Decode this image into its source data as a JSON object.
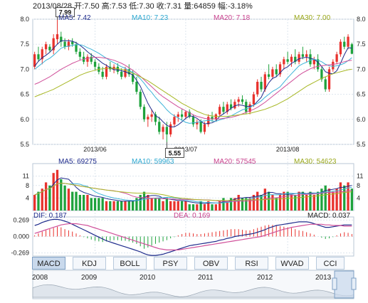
{
  "header": {
    "text": "2013/08/28 开:7.50 高:7.53 低:7.30 收:7.31 量:64859 幅:-3.18%"
  },
  "colors": {
    "up": "#e8322d",
    "down": "#1ea23c",
    "ma5": "#1f2c8c",
    "ma10": "#3fb4d8",
    "ma20": "#d0509a",
    "ma30": "#a8b826"
  },
  "price_legend": {
    "ma5": "MA5: 7.42",
    "ma10": "MA10: 7.23",
    "ma20": "MA20: 7.18",
    "ma30": "MA30: 7.00"
  },
  "vol_legend": {
    "ma5": "MA5: 69275",
    "ma10": "MA10: 59963",
    "ma20": "MA20: 57545",
    "ma30": "MA30: 54623"
  },
  "macd_legend": {
    "dif": "DIF: 0.187",
    "dea": "DEA: 0.169",
    "macd": "MACD: 0.037"
  },
  "tabs": [
    "MACD",
    "KDJ",
    "BOLL",
    "PSY",
    "OBV",
    "RSI",
    "WVAD",
    "CCI"
  ],
  "active_tab": "MACD",
  "timeline_years": [
    "2008",
    "2009",
    "2010",
    "2011",
    "2012",
    "2013"
  ],
  "chart_data": [
    {
      "type": "candlestick",
      "x_labels": [
        "2013/06",
        "2013/07",
        "2013/08"
      ],
      "ylim": [
        5.5,
        8.0
      ],
      "y_ticks": [
        "8.0",
        "7.5",
        "7.0",
        "6.5",
        "6.0",
        "5.5"
      ],
      "annotations": [
        {
          "label": "7.99",
          "index": 6
        },
        {
          "label": "5.55",
          "index": 35
        }
      ],
      "ohlc": [
        [
          7.05,
          7.35,
          7.0,
          7.3
        ],
        [
          7.3,
          7.45,
          7.15,
          7.2
        ],
        [
          7.2,
          7.45,
          7.1,
          7.4
        ],
        [
          7.4,
          7.55,
          7.3,
          7.5
        ],
        [
          7.45,
          7.5,
          7.35,
          7.38
        ],
        [
          7.38,
          7.7,
          7.3,
          7.62
        ],
        [
          7.6,
          7.99,
          7.5,
          7.7
        ],
        [
          7.65,
          7.75,
          7.45,
          7.55
        ],
        [
          7.55,
          7.62,
          7.4,
          7.45
        ],
        [
          7.45,
          7.6,
          7.38,
          7.55
        ],
        [
          7.55,
          7.62,
          7.45,
          7.5
        ],
        [
          7.5,
          7.55,
          7.3,
          7.35
        ],
        [
          7.35,
          7.42,
          7.18,
          7.25
        ],
        [
          7.25,
          7.35,
          7.1,
          7.15
        ],
        [
          7.15,
          7.3,
          7.05,
          7.25
        ],
        [
          7.25,
          7.32,
          7.1,
          7.15
        ],
        [
          7.15,
          7.2,
          6.98,
          7.05
        ],
        [
          7.05,
          7.12,
          6.9,
          6.95
        ],
        [
          6.95,
          7.05,
          6.8,
          6.85
        ],
        [
          6.85,
          7.1,
          6.8,
          7.05
        ],
        [
          7.05,
          7.15,
          6.95,
          7.0
        ],
        [
          7.0,
          7.1,
          6.92,
          7.05
        ],
        [
          7.05,
          7.12,
          6.9,
          6.95
        ],
        [
          6.95,
          7.02,
          6.8,
          6.85
        ],
        [
          6.85,
          7.05,
          6.82,
          7.0
        ],
        [
          7.0,
          7.1,
          6.85,
          6.9
        ],
        [
          6.9,
          6.98,
          6.7,
          6.75
        ],
        [
          6.75,
          6.85,
          6.5,
          6.55
        ],
        [
          6.55,
          6.6,
          6.2,
          6.25
        ],
        [
          6.25,
          6.3,
          5.95,
          6.0
        ],
        [
          6.0,
          6.1,
          5.85,
          6.05
        ],
        [
          6.05,
          6.2,
          5.95,
          6.1
        ],
        [
          6.1,
          6.15,
          5.88,
          5.95
        ],
        [
          5.95,
          6.05,
          5.7,
          5.75
        ],
        [
          5.75,
          5.9,
          5.6,
          5.85
        ],
        [
          5.85,
          5.95,
          5.55,
          5.7
        ],
        [
          5.7,
          5.95,
          5.65,
          5.9
        ],
        [
          5.9,
          6.1,
          5.85,
          6.05
        ],
        [
          6.05,
          6.15,
          5.95,
          6.1
        ],
        [
          6.1,
          6.2,
          5.98,
          6.05
        ],
        [
          6.05,
          6.18,
          6.0,
          6.15
        ],
        [
          6.15,
          6.2,
          6.02,
          6.05
        ],
        [
          6.05,
          6.1,
          5.85,
          5.9
        ],
        [
          5.9,
          6.0,
          5.8,
          5.95
        ],
        [
          5.95,
          6.0,
          5.72,
          5.75
        ],
        [
          5.75,
          5.95,
          5.7,
          5.9
        ],
        [
          5.9,
          6.1,
          5.85,
          6.05
        ],
        [
          6.05,
          6.15,
          5.95,
          6.0
        ],
        [
          6.0,
          6.12,
          5.95,
          6.1
        ],
        [
          6.1,
          6.3,
          6.05,
          6.25
        ],
        [
          6.25,
          6.35,
          6.1,
          6.15
        ],
        [
          6.15,
          6.35,
          6.1,
          6.3
        ],
        [
          6.3,
          6.4,
          6.18,
          6.22
        ],
        [
          6.22,
          6.4,
          6.2,
          6.35
        ],
        [
          6.35,
          6.45,
          6.25,
          6.4
        ],
        [
          6.4,
          6.48,
          6.3,
          6.35
        ],
        [
          6.35,
          6.4,
          6.1,
          6.15
        ],
        [
          6.15,
          6.35,
          6.1,
          6.3
        ],
        [
          6.3,
          6.55,
          6.25,
          6.5
        ],
        [
          6.5,
          6.8,
          6.45,
          6.75
        ],
        [
          6.75,
          6.85,
          6.55,
          6.6
        ],
        [
          6.6,
          6.95,
          6.55,
          6.9
        ],
        [
          6.9,
          7.1,
          6.8,
          6.85
        ],
        [
          6.85,
          7.05,
          6.8,
          7.0
        ],
        [
          7.0,
          7.1,
          6.85,
          6.9
        ],
        [
          6.9,
          7.15,
          6.85,
          7.1
        ],
        [
          7.1,
          7.25,
          7.0,
          7.2
        ],
        [
          7.2,
          7.35,
          7.1,
          7.15
        ],
        [
          7.15,
          7.3,
          7.05,
          7.25
        ],
        [
          7.25,
          7.4,
          7.1,
          7.15
        ],
        [
          7.15,
          7.35,
          7.1,
          7.3
        ],
        [
          7.3,
          7.45,
          7.2,
          7.25
        ],
        [
          7.25,
          7.38,
          7.15,
          7.3
        ],
        [
          7.3,
          7.4,
          7.05,
          7.1
        ],
        [
          7.1,
          7.25,
          7.0,
          7.2
        ],
        [
          7.2,
          7.3,
          6.95,
          7.0
        ],
        [
          7.0,
          7.05,
          6.75,
          6.8
        ],
        [
          6.8,
          6.85,
          6.55,
          6.6
        ],
        [
          6.6,
          7.05,
          6.55,
          7.0
        ],
        [
          7.0,
          7.2,
          6.95,
          7.15
        ],
        [
          7.15,
          7.35,
          7.1,
          7.3
        ],
        [
          7.3,
          7.6,
          7.25,
          7.55
        ],
        [
          7.55,
          7.65,
          7.4,
          7.45
        ],
        [
          7.45,
          7.7,
          7.4,
          7.65
        ],
        [
          7.5,
          7.53,
          7.3,
          7.31
        ]
      ],
      "ma_series": [
        {
          "name": "MA5",
          "values": [
            7.06,
            7.16,
            7.23,
            7.28,
            7.34,
            7.42,
            7.5,
            7.57,
            7.57,
            7.57,
            7.56,
            7.53,
            7.48,
            7.42,
            7.35,
            7.29,
            7.24,
            7.18,
            7.12,
            7.08,
            7.03,
            6.99,
            6.99,
            6.97,
            6.95,
            6.92,
            6.89,
            6.78,
            6.66,
            6.49,
            6.32,
            6.19,
            6.07,
            6.03,
            5.95,
            5.88,
            5.85,
            5.85,
            5.89,
            5.95,
            6.02,
            6.07,
            6.06,
            6.02,
            5.96,
            5.91,
            5.92,
            5.93,
            5.97,
            6.06,
            6.11,
            6.16,
            6.22,
            6.27,
            6.29,
            6.28,
            6.26,
            6.26,
            6.28,
            6.36,
            6.44,
            6.6,
            6.73,
            6.82,
            6.85,
            6.93,
            7.01,
            7.05,
            7.12,
            7.16,
            7.21,
            7.23,
            7.24,
            7.22,
            7.2,
            7.14,
            7.06,
            6.95,
            6.92,
            6.91,
            6.97,
            7.12,
            7.29,
            7.43,
            7.42
          ]
        },
        {
          "name": "MA10",
          "values": [
            7.0,
            7.06,
            7.12,
            7.18,
            7.22,
            7.28,
            7.35,
            7.42,
            7.45,
            7.46,
            7.48,
            7.49,
            7.49,
            7.47,
            7.43,
            7.4,
            7.36,
            7.32,
            7.27,
            7.22,
            7.17,
            7.13,
            7.09,
            7.05,
            7.02,
            6.97,
            6.94,
            6.88,
            6.81,
            6.72,
            6.62,
            6.54,
            6.44,
            6.36,
            6.28,
            6.19,
            6.12,
            6.07,
            6.03,
            5.98,
            5.94,
            5.92,
            5.93,
            5.94,
            5.96,
            5.97,
            5.98,
            5.97,
            5.96,
            5.99,
            6.01,
            6.04,
            6.07,
            6.11,
            6.15,
            6.19,
            6.21,
            6.24,
            6.28,
            6.32,
            6.37,
            6.44,
            6.5,
            6.56,
            6.6,
            6.65,
            6.74,
            6.83,
            6.91,
            6.99,
            7.07,
            7.11,
            7.14,
            7.18,
            7.2,
            7.18,
            7.15,
            7.1,
            7.07,
            7.06,
            7.07,
            7.09,
            7.12,
            7.17,
            7.23
          ]
        },
        {
          "name": "MA20",
          "values": [
            6.7,
            6.73,
            6.77,
            6.81,
            6.85,
            6.9,
            6.95,
            7.0,
            7.04,
            7.08,
            7.12,
            7.15,
            7.18,
            7.2,
            7.22,
            7.23,
            7.24,
            7.24,
            7.23,
            7.22,
            7.2,
            7.18,
            7.15,
            7.12,
            7.08,
            7.03,
            6.98,
            6.92,
            6.86,
            6.79,
            6.72,
            6.65,
            6.58,
            6.51,
            6.45,
            6.4,
            6.35,
            6.3,
            6.25,
            6.21,
            6.17,
            6.13,
            6.09,
            6.06,
            6.04,
            6.02,
            6.01,
            6.01,
            6.01,
            6.01,
            6.02,
            6.03,
            6.04,
            6.06,
            6.08,
            6.11,
            6.14,
            6.17,
            6.2,
            6.24,
            6.29,
            6.34,
            6.4,
            6.46,
            6.52,
            6.58,
            6.64,
            6.7,
            6.76,
            6.82,
            6.88,
            6.93,
            6.97,
            7.01,
            7.04,
            7.06,
            7.07,
            7.08,
            7.09,
            7.1,
            7.11,
            7.13,
            7.15,
            7.17,
            7.18
          ]
        },
        {
          "name": "MA30",
          "values": [
            6.45,
            6.48,
            6.51,
            6.54,
            6.57,
            6.6,
            6.64,
            6.68,
            6.72,
            6.76,
            6.8,
            6.84,
            6.88,
            6.91,
            6.94,
            6.96,
            6.98,
            7.0,
            7.01,
            7.02,
            7.02,
            7.02,
            7.01,
            7.0,
            6.98,
            6.95,
            6.92,
            6.89,
            6.85,
            6.81,
            6.77,
            6.72,
            6.67,
            6.62,
            6.57,
            6.52,
            6.47,
            6.42,
            6.37,
            6.32,
            6.28,
            6.24,
            6.2,
            6.16,
            6.13,
            6.1,
            6.08,
            6.07,
            6.06,
            6.06,
            6.06,
            6.06,
            6.07,
            6.08,
            6.09,
            6.1,
            6.11,
            6.12,
            6.14,
            6.16,
            6.18,
            6.2,
            6.23,
            6.26,
            6.29,
            6.33,
            6.37,
            6.41,
            6.46,
            6.51,
            6.56,
            6.61,
            6.66,
            6.7,
            6.74,
            6.78,
            6.82,
            6.85,
            6.88,
            6.91,
            6.93,
            6.95,
            6.97,
            6.99,
            7.0
          ]
        }
      ]
    },
    {
      "type": "bar",
      "title": "volume",
      "ylim": [
        0,
        15
      ],
      "y_ticks": [
        "11",
        "8",
        "4"
      ],
      "values": [
        5,
        6,
        7,
        9,
        8,
        12,
        13,
        10,
        8,
        7,
        6,
        6,
        5,
        5,
        5,
        4,
        4,
        4,
        4,
        3,
        3,
        3,
        3,
        3,
        3,
        3,
        3,
        4,
        5,
        6,
        5,
        4,
        4,
        4,
        3,
        4,
        3,
        3,
        3,
        3,
        3,
        2,
        2,
        2,
        3,
        2,
        3,
        2,
        2,
        3,
        4,
        3,
        4,
        4,
        5,
        4,
        4,
        4,
        5,
        6,
        5,
        7,
        6,
        5,
        4,
        5,
        6,
        6,
        5,
        5,
        6,
        6,
        5,
        6,
        5,
        6,
        7,
        8,
        7,
        6,
        7,
        9,
        8,
        9,
        7
      ]
    },
    {
      "type": "bar",
      "title": "macd",
      "ylim": [
        -0.32,
        0.32
      ],
      "y_ticks": [
        "0.269",
        "0.000",
        "-0.269"
      ],
      "macd_hist": [
        0.02,
        0.05,
        0.08,
        0.1,
        0.12,
        0.14,
        0.16,
        0.15,
        0.12,
        0.1,
        0.08,
        0.05,
        0.02,
        -0.01,
        -0.03,
        -0.05,
        -0.07,
        -0.08,
        -0.09,
        -0.08,
        -0.07,
        -0.06,
        -0.06,
        -0.07,
        -0.07,
        -0.08,
        -0.1,
        -0.12,
        -0.16,
        -0.2,
        -0.18,
        -0.15,
        -0.12,
        -0.1,
        -0.08,
        -0.06,
        -0.03,
        -0.01,
        0.02,
        0.04,
        0.06,
        0.06,
        0.05,
        0.04,
        0.04,
        0.05,
        0.06,
        0.07,
        0.08,
        0.09,
        0.1,
        0.11,
        0.12,
        0.12,
        0.12,
        0.11,
        0.1,
        0.1,
        0.12,
        0.14,
        0.16,
        0.18,
        0.19,
        0.19,
        0.18,
        0.17,
        0.16,
        0.15,
        0.14,
        0.12,
        0.1,
        0.09,
        0.07,
        0.05,
        0.03,
        0.0,
        -0.02,
        -0.04,
        -0.03,
        -0.01,
        0.02,
        0.05,
        0.07,
        0.06,
        0.04
      ],
      "dif": [
        0.18,
        0.2,
        0.23,
        0.25,
        0.27,
        0.28,
        0.28,
        0.27,
        0.25,
        0.23,
        0.2,
        0.17,
        0.14,
        0.11,
        0.08,
        0.05,
        0.02,
        -0.01,
        -0.04,
        -0.07,
        -0.09,
        -0.11,
        -0.13,
        -0.15,
        -0.17,
        -0.19,
        -0.21,
        -0.23,
        -0.25,
        -0.28,
        -0.3,
        -0.31,
        -0.31,
        -0.3,
        -0.29,
        -0.27,
        -0.25,
        -0.23,
        -0.21,
        -0.19,
        -0.17,
        -0.15,
        -0.14,
        -0.13,
        -0.12,
        -0.11,
        -0.1,
        -0.09,
        -0.08,
        -0.06,
        -0.05,
        -0.03,
        -0.02,
        0.0,
        0.01,
        0.02,
        0.03,
        0.04,
        0.05,
        0.07,
        0.09,
        0.11,
        0.14,
        0.16,
        0.18,
        0.19,
        0.2,
        0.21,
        0.22,
        0.23,
        0.24,
        0.24,
        0.24,
        0.23,
        0.21,
        0.19,
        0.17,
        0.15,
        0.15,
        0.16,
        0.17,
        0.18,
        0.19,
        0.19,
        0.19
      ],
      "dea": [
        0.05,
        0.07,
        0.09,
        0.11,
        0.13,
        0.15,
        0.17,
        0.19,
        0.2,
        0.21,
        0.21,
        0.21,
        0.2,
        0.19,
        0.18,
        0.16,
        0.14,
        0.12,
        0.1,
        0.08,
        0.06,
        0.04,
        0.02,
        0.0,
        -0.02,
        -0.04,
        -0.06,
        -0.08,
        -0.1,
        -0.12,
        -0.14,
        -0.16,
        -0.18,
        -0.2,
        -0.21,
        -0.22,
        -0.22,
        -0.22,
        -0.22,
        -0.21,
        -0.2,
        -0.19,
        -0.18,
        -0.17,
        -0.16,
        -0.15,
        -0.14,
        -0.13,
        -0.12,
        -0.11,
        -0.1,
        -0.09,
        -0.08,
        -0.07,
        -0.06,
        -0.05,
        -0.04,
        -0.03,
        -0.02,
        -0.01,
        0.0,
        0.02,
        0.04,
        0.06,
        0.08,
        0.1,
        0.12,
        0.13,
        0.15,
        0.16,
        0.17,
        0.18,
        0.19,
        0.2,
        0.2,
        0.2,
        0.2,
        0.19,
        0.19,
        0.18,
        0.18,
        0.18,
        0.17,
        0.17,
        0.17
      ]
    }
  ]
}
